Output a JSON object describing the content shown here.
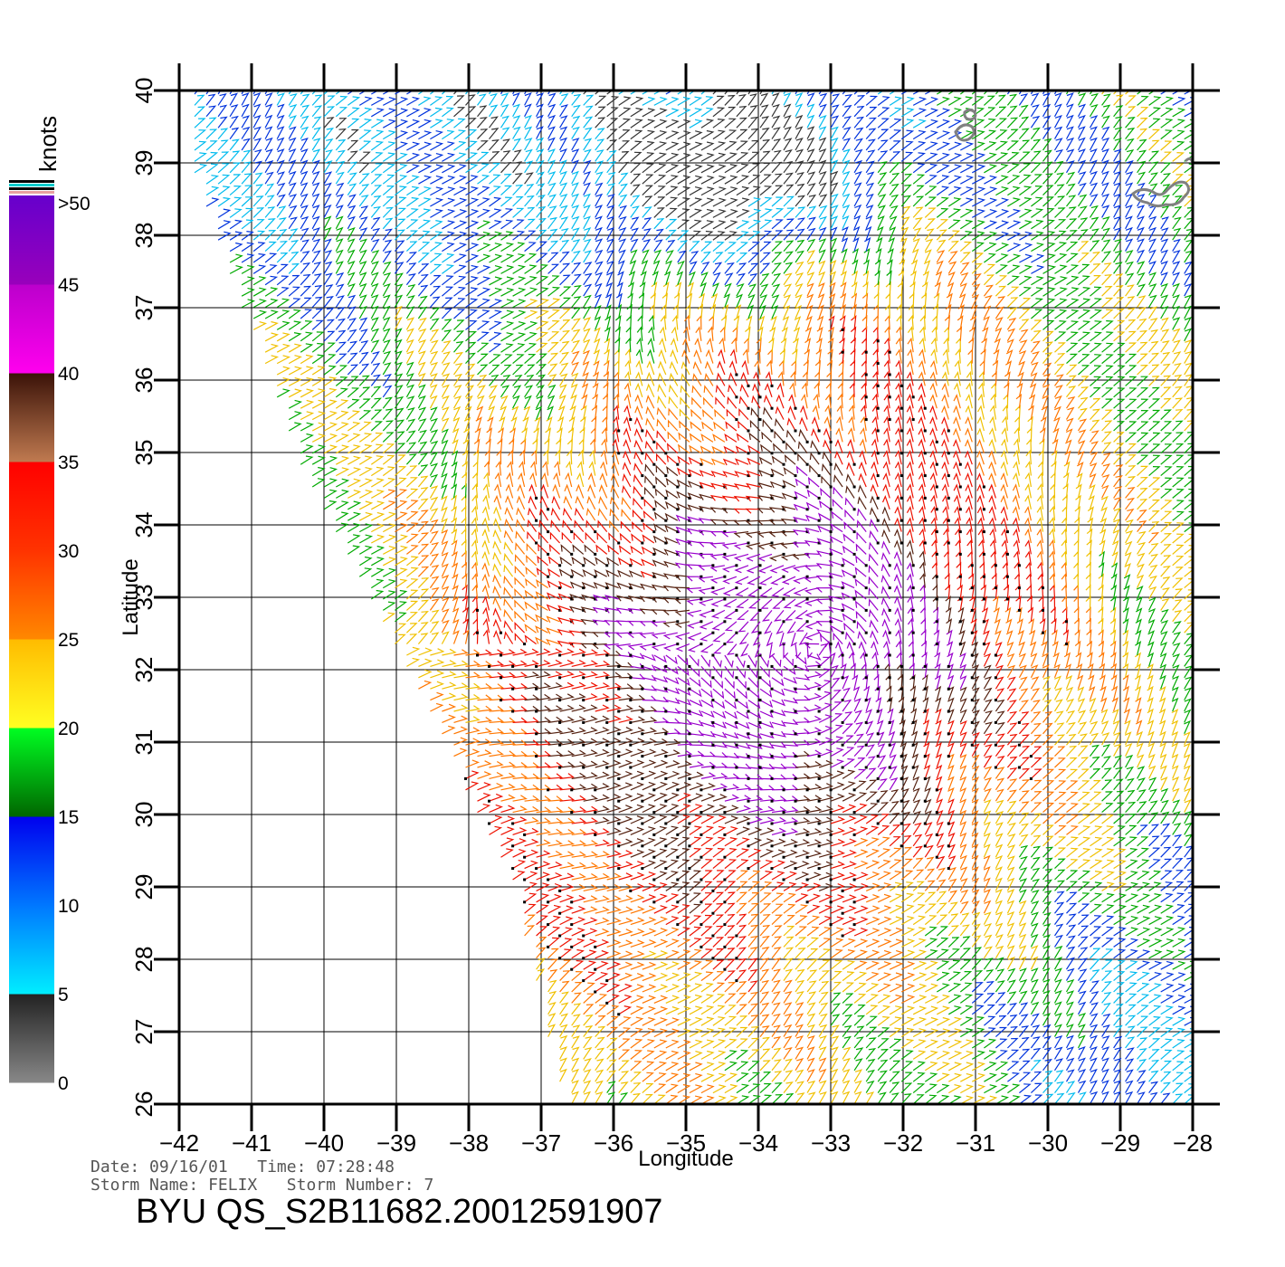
{
  "colorbar": {
    "unit_label": "knots",
    "ticks": [
      {
        "label": ">50",
        "value": 50
      },
      {
        "label": "45",
        "value": 45
      },
      {
        "label": "40",
        "value": 40
      },
      {
        "label": "35",
        "value": 35
      },
      {
        "label": "30",
        "value": 30
      },
      {
        "label": "25",
        "value": 25
      },
      {
        "label": "20",
        "value": 20
      },
      {
        "label": "15",
        "value": 15
      },
      {
        "label": "10",
        "value": 10
      },
      {
        "label": "5",
        "value": 5
      },
      {
        "label": "0",
        "value": 0
      }
    ],
    "bands": [
      {
        "from": 0,
        "to": 5,
        "colors": [
          "#888888",
          "#222222"
        ]
      },
      {
        "from": 5,
        "to": 10,
        "colors": [
          "#00eeff",
          "#0077ff"
        ]
      },
      {
        "from": 10,
        "to": 15,
        "colors": [
          "#0077ff",
          "#0000ee"
        ]
      },
      {
        "from": 15,
        "to": 20,
        "colors": [
          "#006600",
          "#00ff22"
        ]
      },
      {
        "from": 20,
        "to": 25,
        "colors": [
          "#ffff22",
          "#ffbb00"
        ]
      },
      {
        "from": 25,
        "to": 30,
        "colors": [
          "#ff8800",
          "#ff3300"
        ]
      },
      {
        "from": 30,
        "to": 35,
        "colors": [
          "#ff3300",
          "#ff0000"
        ]
      },
      {
        "from": 35,
        "to": 40,
        "colors": [
          "#c07a50",
          "#3a1208"
        ]
      },
      {
        "from": 40,
        "to": 45,
        "colors": [
          "#ff00ee",
          "#bb00cc"
        ]
      },
      {
        "from": 45,
        "to": 50,
        "colors": [
          "#9900bb",
          "#6600cc"
        ]
      }
    ]
  },
  "chart_data": {
    "type": "wind-barb map",
    "xlabel": "Longitude",
    "ylabel": "Latitude",
    "xlim": [
      -42,
      -28
    ],
    "ylim": [
      26,
      40
    ],
    "x_ticks": [
      "-42",
      "-41",
      "-40",
      "-39",
      "-38",
      "-37",
      "-36",
      "-35",
      "-34",
      "-33",
      "-32",
      "-31",
      "-30",
      "-29",
      "-28"
    ],
    "y_ticks": [
      "26",
      "27",
      "28",
      "29",
      "30",
      "31",
      "32",
      "33",
      "34",
      "35",
      "36",
      "37",
      "38",
      "39",
      "40"
    ],
    "grid": true,
    "swath_edge": [
      [
        -41.9,
        39.1
      ],
      [
        -40.3,
        34.7
      ],
      [
        -38.8,
        31.9
      ],
      [
        -37.4,
        29.0
      ],
      [
        -36.7,
        26.0
      ]
    ],
    "wind_field": [
      {
        "region": "north-west (39-40N, 42-36W)",
        "speed_knots": "10-15",
        "direction": "from south-west"
      },
      {
        "region": "north-central (38-40N, 35-33W)",
        "speed_knots": "0-10",
        "direction": "variable"
      },
      {
        "region": "storm center (31-34N, 35-31W)",
        "speed_knots": ">40",
        "direction": "cyclonic"
      },
      {
        "region": "south (27-30N, 37-32W)",
        "speed_knots": "25-35",
        "direction": "from south-west"
      },
      {
        "region": "south-east (26-28N, 30-28W)",
        "speed_knots": "10-15",
        "direction": "from north"
      }
    ],
    "land_features": [
      "Azores islands near 38-39.5N, 28-31W"
    ]
  },
  "info": {
    "date_label": "Date:",
    "date": "09/16/01",
    "time_label": "Time:",
    "time": "07:28:48",
    "storm_name_label": "Storm Name:",
    "storm_name": "FELIX",
    "storm_number_label": "Storm Number:",
    "storm_number": "7"
  },
  "file_title": "BYU QS_S2B11682.20012591907"
}
